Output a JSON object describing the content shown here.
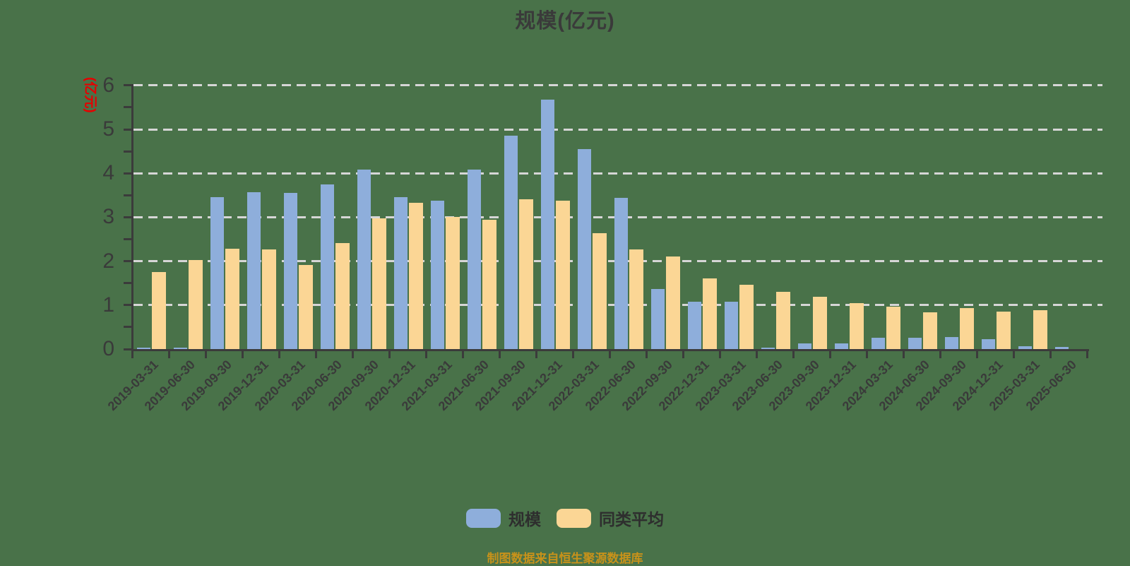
{
  "title": "规模(亿元)",
  "y_axis": {
    "name": "(亿元)",
    "labels": [
      "0",
      "1",
      "2",
      "3",
      "4",
      "5",
      "6"
    ]
  },
  "legend": {
    "items": [
      {
        "label": "规模",
        "color": "#8EAEDB"
      },
      {
        "label": "同类平均",
        "color": "#FBD695"
      }
    ]
  },
  "source_note": "制图数据来自恒生聚源数据库",
  "colors": {
    "background": "#497249",
    "bar_blue": "#8EAEDB",
    "bar_yellow": "#FBD695",
    "gridline": "#D6D6D6",
    "axis": "#3B3B3B",
    "axis_label": "#3A3A3A",
    "title_text": "#3A3A3A",
    "y_name_red": "#E60000",
    "legend_text": "#2E2E2E",
    "source_text": "#C8921A"
  },
  "chart_data": {
    "type": "bar",
    "title": "规模(亿元)",
    "ylabel": "(亿元)",
    "ylim": [
      0,
      6
    ],
    "yticks": [
      0,
      1,
      2,
      3,
      4,
      5,
      6
    ],
    "grid": "horizontal-dashed",
    "legend_position": "bottom",
    "categories": [
      "2019-03-31",
      "2019-06-30",
      "2019-09-30",
      "2019-12-31",
      "2020-03-31",
      "2020-06-30",
      "2020-09-30",
      "2020-12-31",
      "2021-03-31",
      "2021-06-30",
      "2021-09-30",
      "2021-12-31",
      "2022-03-31",
      "2022-06-30",
      "2022-09-30",
      "2022-12-31",
      "2023-03-31",
      "2023-06-30",
      "2023-09-30",
      "2023-12-31",
      "2024-03-31",
      "2024-06-30",
      "2024-09-30",
      "2024-12-31",
      "2025-03-31",
      "2025-06-30"
    ],
    "series": [
      {
        "name": "规模",
        "color": "#8EAEDB",
        "values": [
          0.03,
          0.03,
          3.46,
          3.57,
          3.56,
          3.75,
          4.09,
          3.45,
          3.38,
          4.09,
          4.85,
          5.68,
          4.55,
          3.44,
          1.36,
          1.08,
          1.07,
          0.04,
          0.13,
          0.13,
          0.25,
          0.25,
          0.27,
          0.23,
          0.06,
          0.05
        ]
      },
      {
        "name": "同类平均",
        "color": "#FBD695",
        "values": [
          1.75,
          2.02,
          2.29,
          2.26,
          1.92,
          2.41,
          2.98,
          3.32,
          3.01,
          2.94,
          3.41,
          3.38,
          2.63,
          2.26,
          2.11,
          1.61,
          1.46,
          1.31,
          1.19,
          1.04,
          0.97,
          0.83,
          0.94,
          0.86,
          0.88,
          0
        ]
      }
    ]
  }
}
